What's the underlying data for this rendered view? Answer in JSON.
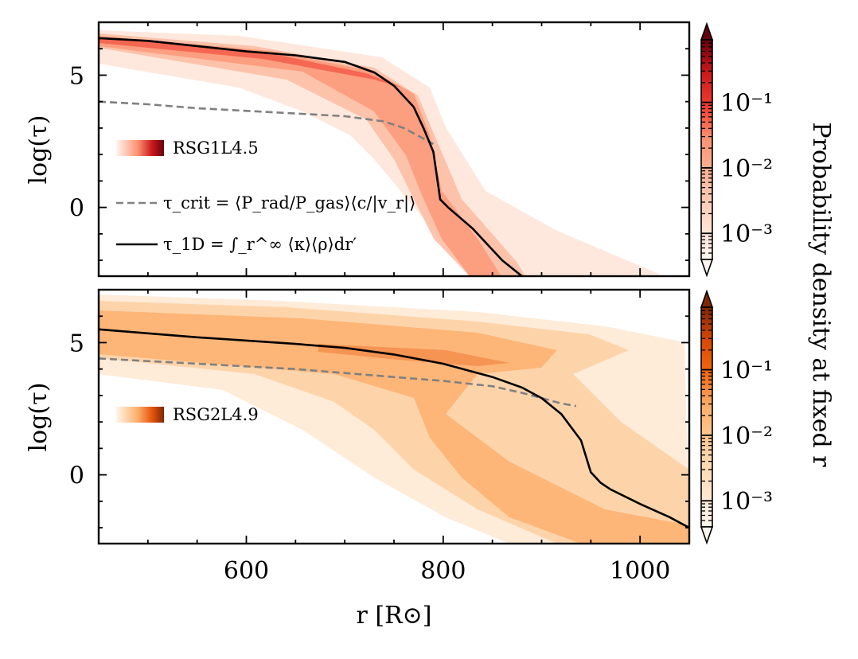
{
  "chart_data": [
    {
      "type": "heatmap",
      "panel": "top",
      "ylabel": "log(τ)",
      "xlim": [
        450,
        1050
      ],
      "ylim": [
        -2.6,
        7.0
      ],
      "yticks": [
        {
          "value": 5,
          "label": "5"
        },
        {
          "value": 0,
          "label": "0"
        }
      ],
      "cmap": "Reds",
      "colormap_stops": [
        "#fff5f0",
        "#fdd0bc",
        "#fc9272",
        "#ef3b2c",
        "#cb181d",
        "#a50f15",
        "#67000d"
      ],
      "series": [
        {
          "name": "RSG1L4.5",
          "kind": "colormap-swatch"
        },
        {
          "name": "τ_crit = ⟨P_rad/P_gas⟩⟨c/|v_r|⟩",
          "kind": "dashed-line",
          "color": "#808080",
          "x": [
            450,
            500,
            550,
            600,
            650,
            700,
            740,
            760,
            775,
            790
          ],
          "y": [
            4.0,
            3.9,
            3.75,
            3.65,
            3.55,
            3.45,
            3.25,
            3.0,
            2.7,
            2.4
          ]
        },
        {
          "name": "τ_1D = ∫_r^∞ ⟨κ⟩⟨ρ⟩dr′",
          "kind": "solid-line",
          "color": "#000000",
          "x": [
            450,
            500,
            550,
            600,
            650,
            700,
            730,
            750,
            770,
            780,
            790,
            797,
            805,
            830,
            860,
            880
          ],
          "y": [
            6.4,
            6.3,
            6.1,
            5.9,
            5.75,
            5.5,
            5.1,
            4.6,
            3.8,
            3.0,
            2.1,
            0.3,
            0.0,
            -0.8,
            -2.0,
            -2.6
          ]
        }
      ]
    },
    {
      "type": "heatmap",
      "panel": "bottom",
      "ylabel": "log(τ)",
      "xlabel": "r [R⊙]",
      "xlim": [
        450,
        1050
      ],
      "ylim": [
        -2.6,
        7.0
      ],
      "xticks": [
        {
          "value": 600,
          "label": "600"
        },
        {
          "value": 800,
          "label": "800"
        },
        {
          "value": 1000,
          "label": "1000"
        }
      ],
      "yticks": [
        {
          "value": 5,
          "label": "5"
        },
        {
          "value": 0,
          "label": "0"
        }
      ],
      "cmap": "Oranges",
      "colormap_stops": [
        "#fff5eb",
        "#fdd9b4",
        "#fdae6b",
        "#fd8d3c",
        "#e6550d",
        "#a63603",
        "#7f2704"
      ],
      "series": [
        {
          "name": "RSG2L4.9",
          "kind": "colormap-swatch"
        },
        {
          "name": "τ_crit",
          "kind": "dashed-line",
          "color": "#808080",
          "x": [
            450,
            550,
            650,
            750,
            800,
            850,
            880,
            900,
            920,
            935
          ],
          "y": [
            4.4,
            4.2,
            4.0,
            3.7,
            3.55,
            3.35,
            3.1,
            2.9,
            2.7,
            2.6
          ]
        },
        {
          "name": "τ_1D",
          "kind": "solid-line",
          "color": "#000000",
          "x": [
            450,
            550,
            650,
            700,
            750,
            800,
            850,
            880,
            900,
            920,
            940,
            950,
            960,
            970,
            1000,
            1030,
            1050
          ],
          "y": [
            5.5,
            5.2,
            4.95,
            4.8,
            4.55,
            4.2,
            3.7,
            3.3,
            2.9,
            2.3,
            1.3,
            0.1,
            -0.3,
            -0.55,
            -1.1,
            -1.6,
            -2.0
          ]
        }
      ]
    }
  ],
  "colorbars": [
    {
      "panel": "top",
      "scale": "log",
      "range": [
        0.0004,
        0.9
      ],
      "ticks": [
        {
          "value": 0.1,
          "label": "10⁻¹"
        },
        {
          "value": 0.01,
          "label": "10⁻²"
        },
        {
          "value": 0.001,
          "label": "10⁻³"
        }
      ]
    },
    {
      "panel": "bottom",
      "scale": "log",
      "range": [
        0.0004,
        0.9
      ],
      "ticks": [
        {
          "value": 0.1,
          "label": "10⁻¹"
        },
        {
          "value": 0.01,
          "label": "10⁻²"
        },
        {
          "value": 0.001,
          "label": "10⁻³"
        }
      ]
    }
  ],
  "colorbar_label": "Probability density at fixed r"
}
